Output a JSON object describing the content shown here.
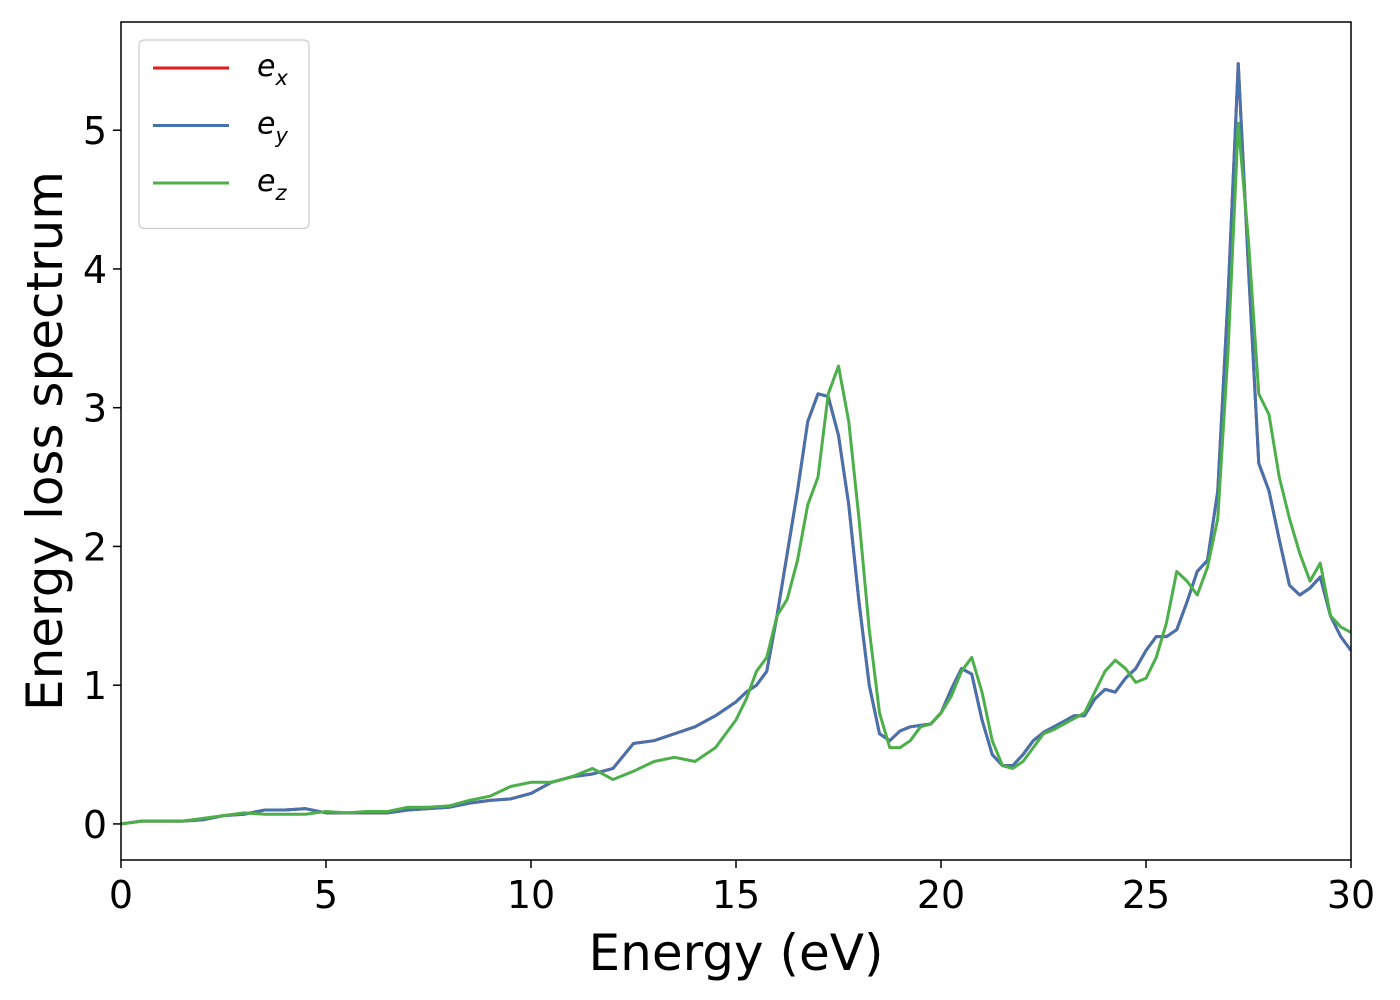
{
  "chart_data": {
    "type": "line",
    "xlabel": "Energy (eV)",
    "ylabel": "Energy loss spectrum",
    "x": [
      0,
      0.5,
      1,
      1.5,
      2,
      2.5,
      3,
      3.5,
      4,
      4.5,
      5,
      5.5,
      6,
      6.5,
      7,
      7.5,
      8,
      8.5,
      9,
      9.5,
      10,
      10.5,
      11,
      11.5,
      12,
      12.5,
      13,
      13.5,
      14,
      14.5,
      15,
      15.25,
      15.5,
      15.75,
      16,
      16.25,
      16.5,
      16.75,
      17,
      17.25,
      17.5,
      17.75,
      18,
      18.25,
      18.5,
      18.75,
      19,
      19.25,
      19.5,
      19.75,
      20,
      20.25,
      20.5,
      20.75,
      21,
      21.25,
      21.5,
      21.75,
      22,
      22.25,
      22.5,
      22.75,
      23,
      23.25,
      23.5,
      23.75,
      24,
      24.25,
      24.5,
      24.75,
      25,
      25.25,
      25.5,
      25.75,
      26,
      26.25,
      26.5,
      26.75,
      27,
      27.25,
      27.5,
      27.75,
      28,
      28.25,
      28.5,
      28.75,
      29,
      29.25,
      29.5,
      29.75,
      30
    ],
    "series": [
      {
        "name": "e_x",
        "color": "#e41a1c",
        "values": [
          0,
          0.02,
          0.02,
          0.02,
          0.03,
          0.06,
          0.07,
          0.1,
          0.1,
          0.11,
          0.08,
          0.08,
          0.08,
          0.08,
          0.1,
          0.11,
          0.12,
          0.15,
          0.17,
          0.18,
          0.22,
          0.3,
          0.34,
          0.36,
          0.4,
          0.58,
          0.6,
          0.65,
          0.7,
          0.78,
          0.88,
          0.95,
          1.0,
          1.1,
          1.5,
          1.95,
          2.4,
          2.9,
          3.1,
          3.08,
          2.8,
          2.3,
          1.6,
          1.0,
          0.65,
          0.6,
          0.67,
          0.7,
          0.71,
          0.72,
          0.8,
          0.97,
          1.12,
          1.08,
          0.75,
          0.5,
          0.42,
          0.42,
          0.5,
          0.6,
          0.66,
          0.7,
          0.74,
          0.78,
          0.78,
          0.9,
          0.97,
          0.95,
          1.05,
          1.12,
          1.25,
          1.35,
          1.35,
          1.4,
          1.6,
          1.82,
          1.9,
          2.4,
          3.8,
          5.48,
          4.0,
          2.6,
          2.4,
          2.05,
          1.72,
          1.65,
          1.7,
          1.78,
          1.5,
          1.35,
          1.25
        ]
      },
      {
        "name": "e_y",
        "color": "#4672ae",
        "values": [
          0,
          0.02,
          0.02,
          0.02,
          0.03,
          0.06,
          0.07,
          0.1,
          0.1,
          0.11,
          0.08,
          0.08,
          0.08,
          0.08,
          0.1,
          0.11,
          0.12,
          0.15,
          0.17,
          0.18,
          0.22,
          0.3,
          0.34,
          0.36,
          0.4,
          0.58,
          0.6,
          0.65,
          0.7,
          0.78,
          0.88,
          0.95,
          1.0,
          1.1,
          1.5,
          1.95,
          2.4,
          2.9,
          3.1,
          3.08,
          2.8,
          2.3,
          1.6,
          1.0,
          0.65,
          0.6,
          0.67,
          0.7,
          0.71,
          0.72,
          0.8,
          0.97,
          1.12,
          1.08,
          0.75,
          0.5,
          0.42,
          0.42,
          0.5,
          0.6,
          0.66,
          0.7,
          0.74,
          0.78,
          0.78,
          0.9,
          0.97,
          0.95,
          1.05,
          1.12,
          1.25,
          1.35,
          1.35,
          1.4,
          1.6,
          1.82,
          1.9,
          2.4,
          3.8,
          5.48,
          4.0,
          2.6,
          2.4,
          2.05,
          1.72,
          1.65,
          1.7,
          1.78,
          1.5,
          1.35,
          1.25
        ]
      },
      {
        "name": "e_z",
        "color": "#4daf4a",
        "values": [
          0,
          0.02,
          0.02,
          0.02,
          0.04,
          0.06,
          0.08,
          0.07,
          0.07,
          0.07,
          0.09,
          0.08,
          0.09,
          0.09,
          0.12,
          0.12,
          0.13,
          0.17,
          0.2,
          0.27,
          0.3,
          0.3,
          0.34,
          0.4,
          0.32,
          0.38,
          0.45,
          0.48,
          0.45,
          0.55,
          0.75,
          0.9,
          1.1,
          1.2,
          1.5,
          1.62,
          1.9,
          2.3,
          2.5,
          3.1,
          3.3,
          2.9,
          2.2,
          1.4,
          0.8,
          0.55,
          0.55,
          0.6,
          0.7,
          0.72,
          0.8,
          0.92,
          1.1,
          1.2,
          0.95,
          0.6,
          0.42,
          0.4,
          0.45,
          0.55,
          0.65,
          0.68,
          0.72,
          0.76,
          0.8,
          0.95,
          1.1,
          1.18,
          1.12,
          1.02,
          1.05,
          1.2,
          1.45,
          1.82,
          1.75,
          1.65,
          1.85,
          2.2,
          3.4,
          5.05,
          4.2,
          3.1,
          2.95,
          2.5,
          2.2,
          1.95,
          1.75,
          1.88,
          1.5,
          1.42,
          1.38
        ]
      }
    ],
    "xlim": [
      0,
      30
    ],
    "xticks": [
      0,
      5,
      10,
      15,
      20,
      25,
      30
    ],
    "ylim": [
      -0.26,
      5.78
    ],
    "yticks": [
      0,
      1,
      2,
      3,
      4,
      5
    ],
    "grid": false,
    "legend": "upper left"
  }
}
